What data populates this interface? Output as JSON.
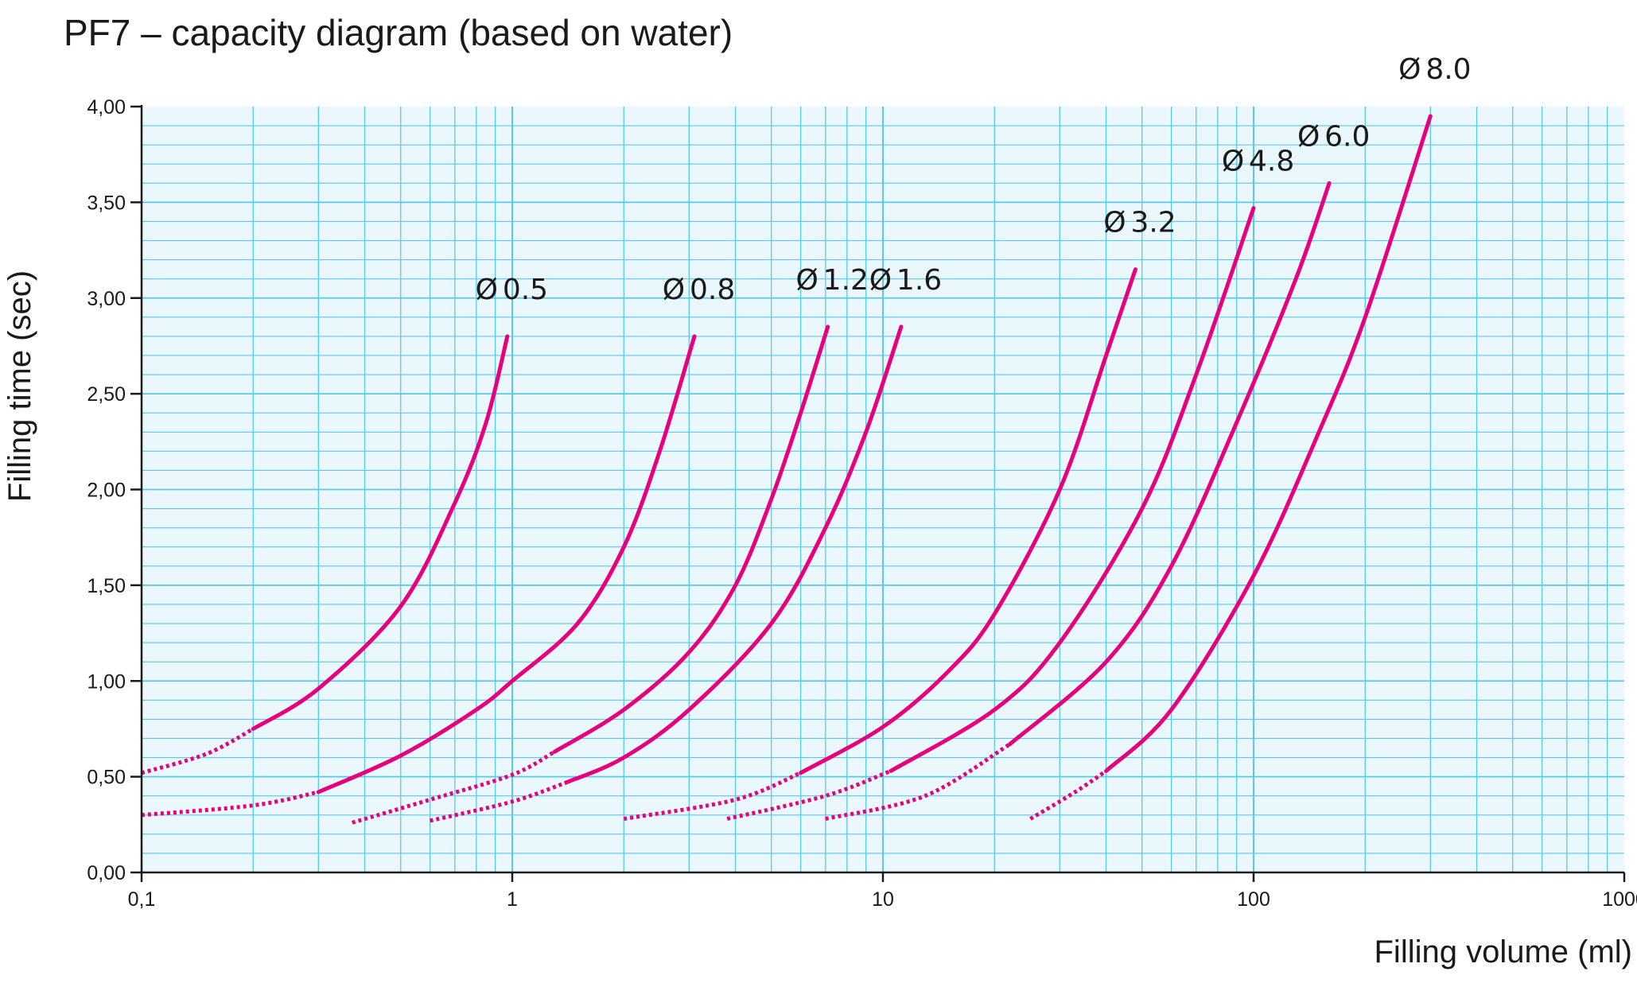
{
  "title": "PF7 – capacity diagram (based on water)",
  "chart_data": {
    "type": "line",
    "title": "PF7 – capacity diagram (based on water)",
    "xlabel": "Filling volume (ml)",
    "ylabel": "Filling time (sec)",
    "x_scale": "log",
    "xlim": [
      0.1,
      1000
    ],
    "ylim": [
      0,
      4
    ],
    "x_ticks": [
      {
        "value": 0.1,
        "label": "0,1"
      },
      {
        "value": 1,
        "label": "1"
      },
      {
        "value": 10,
        "label": "10"
      },
      {
        "value": 100,
        "label": "100"
      },
      {
        "value": 1000,
        "label": "1000"
      }
    ],
    "y_ticks": [
      {
        "value": 0,
        "label": "0,00"
      },
      {
        "value": 0.5,
        "label": "0,50"
      },
      {
        "value": 1,
        "label": "1,00"
      },
      {
        "value": 1.5,
        "label": "1,50"
      },
      {
        "value": 2,
        "label": "2,00"
      },
      {
        "value": 2.5,
        "label": "2,50"
      },
      {
        "value": 3,
        "label": "3,00"
      },
      {
        "value": 3.5,
        "label": "3,50"
      },
      {
        "value": 4,
        "label": "4,00"
      }
    ],
    "grid": true,
    "line_color": "#e6007e",
    "grid_color": "#5bc8e8",
    "series": [
      {
        "name": "Ø0.5",
        "label_symbol": "Ø",
        "label_value": "0.5",
        "dotted": [
          [
            0.1,
            0.52
          ],
          [
            0.15,
            0.62
          ],
          [
            0.2,
            0.75
          ]
        ],
        "solid": [
          [
            0.2,
            0.75
          ],
          [
            0.3,
            0.96
          ],
          [
            0.5,
            1.39
          ],
          [
            0.7,
            1.93
          ],
          [
            0.85,
            2.35
          ],
          [
            0.97,
            2.8
          ]
        ]
      },
      {
        "name": "Ø0.8",
        "label_symbol": "Ø",
        "label_value": "0.8",
        "dotted": [
          [
            0.1,
            0.3
          ],
          [
            0.2,
            0.35
          ],
          [
            0.3,
            0.42
          ]
        ],
        "solid": [
          [
            0.3,
            0.42
          ],
          [
            0.5,
            0.61
          ],
          [
            0.8,
            0.85
          ],
          [
            1.0,
            1.0
          ],
          [
            1.5,
            1.3
          ],
          [
            2.0,
            1.7
          ],
          [
            2.5,
            2.2
          ],
          [
            3.1,
            2.8
          ]
        ]
      },
      {
        "name": "Ø1.2",
        "label_symbol": "Ø",
        "label_value": "1.2",
        "dotted": [
          [
            0.37,
            0.26
          ],
          [
            0.6,
            0.38
          ],
          [
            1.0,
            0.51
          ],
          [
            1.3,
            0.63
          ]
        ],
        "solid": [
          [
            1.3,
            0.63
          ],
          [
            2.0,
            0.85
          ],
          [
            3.0,
            1.15
          ],
          [
            4.0,
            1.5
          ],
          [
            5.0,
            1.95
          ],
          [
            6.0,
            2.4
          ],
          [
            7.1,
            2.85
          ]
        ]
      },
      {
        "name": "Ø1.6",
        "label_symbol": "Ø",
        "label_value": "1.6",
        "dotted": [
          [
            0.6,
            0.27
          ],
          [
            1.0,
            0.37
          ],
          [
            1.4,
            0.47
          ]
        ],
        "solid": [
          [
            1.4,
            0.47
          ],
          [
            2.0,
            0.6
          ],
          [
            3.0,
            0.85
          ],
          [
            5.0,
            1.3
          ],
          [
            7.0,
            1.8
          ],
          [
            9.0,
            2.3
          ],
          [
            11.2,
            2.85
          ]
        ]
      },
      {
        "name": "Ø3.2",
        "label_symbol": "Ø",
        "label_value": "3.2",
        "dotted": [
          [
            2.0,
            0.28
          ],
          [
            4.0,
            0.38
          ],
          [
            6.0,
            0.52
          ]
        ],
        "solid": [
          [
            6.0,
            0.52
          ],
          [
            10.0,
            0.76
          ],
          [
            15.0,
            1.05
          ],
          [
            20.0,
            1.35
          ],
          [
            30.0,
            2.0
          ],
          [
            40.0,
            2.7
          ],
          [
            48.0,
            3.15
          ]
        ]
      },
      {
        "name": "Ø4.8",
        "label_symbol": "Ø",
        "label_value": "4.8",
        "dotted": [
          [
            3.8,
            0.28
          ],
          [
            7.0,
            0.4
          ],
          [
            10.5,
            0.53
          ]
        ],
        "solid": [
          [
            10.5,
            0.53
          ],
          [
            20.0,
            0.85
          ],
          [
            30.0,
            1.2
          ],
          [
            50.0,
            1.9
          ],
          [
            70.0,
            2.6
          ],
          [
            100.0,
            3.47
          ]
        ]
      },
      {
        "name": "Ø6.0",
        "label_symbol": "Ø",
        "label_value": "6.0",
        "dotted": [
          [
            7.0,
            0.28
          ],
          [
            13.0,
            0.4
          ],
          [
            22.0,
            0.67
          ]
        ],
        "solid": [
          [
            22.0,
            0.67
          ],
          [
            40.0,
            1.1
          ],
          [
            60.0,
            1.6
          ],
          [
            90.0,
            2.35
          ],
          [
            130.0,
            3.1
          ],
          [
            160.0,
            3.6
          ]
        ]
      },
      {
        "name": "Ø8.0",
        "label_symbol": "Ø",
        "label_value": "8.0",
        "dotted": [
          [
            25.0,
            0.28
          ],
          [
            33.0,
            0.42
          ],
          [
            40.0,
            0.53
          ]
        ],
        "solid": [
          [
            40.0,
            0.53
          ],
          [
            60.0,
            0.85
          ],
          [
            100.0,
            1.55
          ],
          [
            150.0,
            2.3
          ],
          [
            200.0,
            2.9
          ],
          [
            300.0,
            3.95
          ]
        ]
      }
    ]
  }
}
